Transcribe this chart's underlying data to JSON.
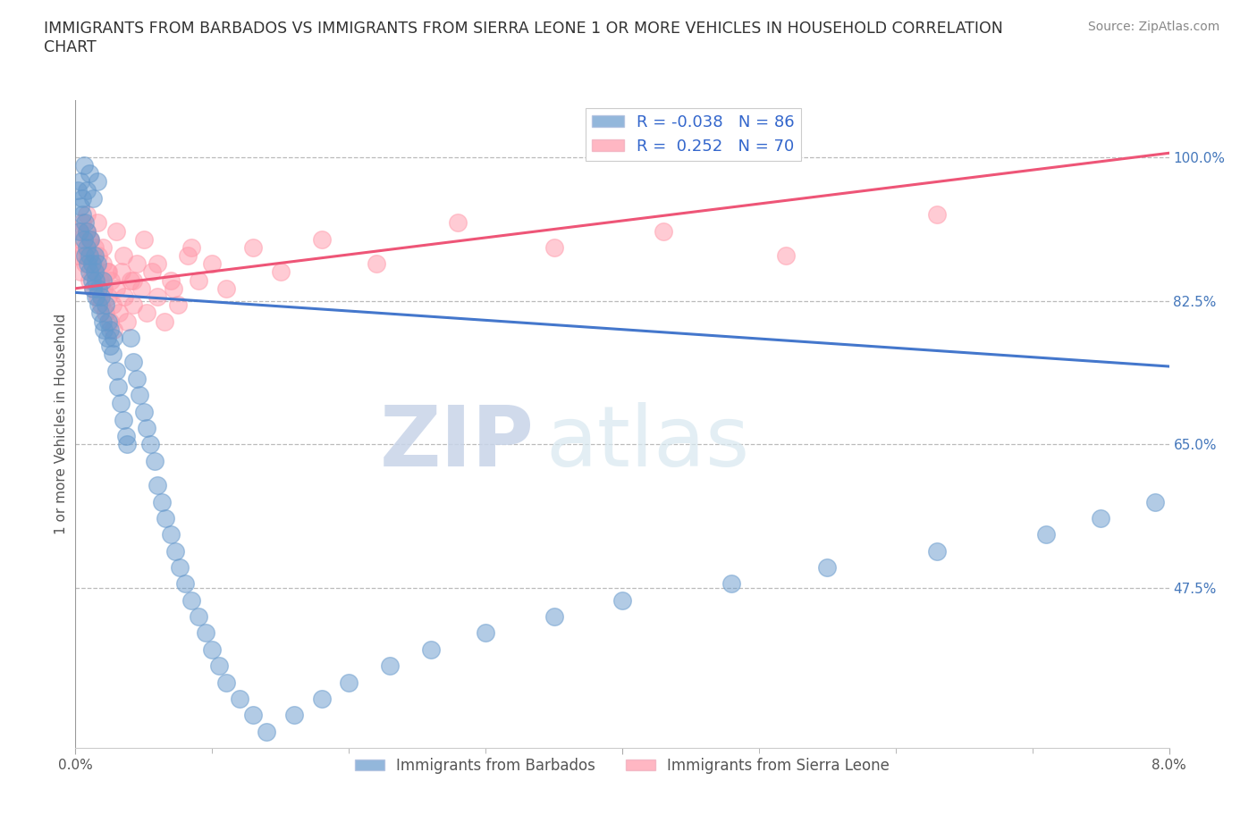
{
  "title": "IMMIGRANTS FROM BARBADOS VS IMMIGRANTS FROM SIERRA LEONE 1 OR MORE VEHICLES IN HOUSEHOLD CORRELATION\nCHART",
  "source": "Source: ZipAtlas.com",
  "ylabel": "1 or more Vehicles in Household",
  "right_yticks": [
    47.5,
    65.0,
    82.5,
    100.0
  ],
  "right_ytick_labels": [
    "47.5%",
    "65.0%",
    "82.5%",
    "100.0%"
  ],
  "xlim": [
    0.0,
    8.0
  ],
  "ylim": [
    28.0,
    107.0
  ],
  "barbados_color": "#6699CC",
  "sierra_leone_color": "#FF99AA",
  "barbados_R": -0.038,
  "barbados_N": 86,
  "sierra_leone_R": 0.252,
  "sierra_leone_N": 70,
  "barbados_line_x0": 0.0,
  "barbados_line_y0": 83.5,
  "barbados_line_x1": 8.0,
  "barbados_line_y1": 74.5,
  "sierra_line_x0": 0.0,
  "sierra_line_y0": 84.0,
  "sierra_line_x1": 8.0,
  "sierra_line_y1": 100.5,
  "legend_label_barbados": "Immigrants from Barbados",
  "legend_label_sierra_leone": "Immigrants from Sierra Leone",
  "watermark_zip": "ZIP",
  "watermark_atlas": "atlas",
  "barbados_scatter_x": [
    0.02,
    0.03,
    0.04,
    0.05,
    0.05,
    0.06,
    0.07,
    0.07,
    0.08,
    0.08,
    0.09,
    0.1,
    0.1,
    0.11,
    0.12,
    0.12,
    0.13,
    0.14,
    0.14,
    0.15,
    0.15,
    0.16,
    0.17,
    0.17,
    0.18,
    0.19,
    0.2,
    0.2,
    0.21,
    0.22,
    0.23,
    0.24,
    0.25,
    0.25,
    0.27,
    0.28,
    0.3,
    0.31,
    0.33,
    0.35,
    0.37,
    0.38,
    0.4,
    0.42,
    0.45,
    0.47,
    0.5,
    0.52,
    0.55,
    0.58,
    0.6,
    0.63,
    0.66,
    0.7,
    0.73,
    0.76,
    0.8,
    0.85,
    0.9,
    0.95,
    1.0,
    1.05,
    1.1,
    1.2,
    1.3,
    1.4,
    1.6,
    1.8,
    2.0,
    2.3,
    2.6,
    3.0,
    3.5,
    4.0,
    4.8,
    5.5,
    6.3,
    7.1,
    7.5,
    7.9,
    0.04,
    0.06,
    0.08,
    0.1,
    0.13,
    0.16
  ],
  "barbados_scatter_y": [
    96,
    91,
    94,
    93,
    95,
    90,
    88,
    92,
    89,
    91,
    87,
    86,
    88,
    90,
    85,
    87,
    84,
    86,
    88,
    83,
    85,
    87,
    82,
    84,
    81,
    83,
    80,
    85,
    79,
    82,
    78,
    80,
    77,
    79,
    76,
    78,
    74,
    72,
    70,
    68,
    66,
    65,
    78,
    75,
    73,
    71,
    69,
    67,
    65,
    63,
    60,
    58,
    56,
    54,
    52,
    50,
    48,
    46,
    44,
    42,
    40,
    38,
    36,
    34,
    32,
    30,
    32,
    34,
    36,
    38,
    40,
    42,
    44,
    46,
    48,
    50,
    52,
    54,
    56,
    58,
    97,
    99,
    96,
    98,
    95,
    97
  ],
  "sierra_leone_scatter_x": [
    0.02,
    0.03,
    0.04,
    0.05,
    0.06,
    0.07,
    0.08,
    0.09,
    0.1,
    0.11,
    0.12,
    0.13,
    0.14,
    0.15,
    0.16,
    0.17,
    0.18,
    0.19,
    0.2,
    0.21,
    0.22,
    0.23,
    0.24,
    0.25,
    0.26,
    0.27,
    0.28,
    0.3,
    0.32,
    0.34,
    0.36,
    0.38,
    0.4,
    0.42,
    0.45,
    0.48,
    0.52,
    0.56,
    0.6,
    0.65,
    0.7,
    0.75,
    0.82,
    0.9,
    1.0,
    1.1,
    1.3,
    1.5,
    1.8,
    2.2,
    2.8,
    3.5,
    4.3,
    5.2,
    6.3,
    0.04,
    0.06,
    0.08,
    0.1,
    0.13,
    0.16,
    0.2,
    0.24,
    0.3,
    0.35,
    0.42,
    0.5,
    0.6,
    0.72,
    0.85
  ],
  "sierra_leone_scatter_y": [
    88,
    90,
    86,
    92,
    89,
    87,
    91,
    88,
    85,
    90,
    87,
    84,
    89,
    86,
    83,
    88,
    85,
    82,
    87,
    84,
    81,
    86,
    83,
    80,
    85,
    82,
    79,
    84,
    81,
    86,
    83,
    80,
    85,
    82,
    87,
    84,
    81,
    86,
    83,
    80,
    85,
    82,
    88,
    85,
    87,
    84,
    89,
    86,
    90,
    87,
    92,
    89,
    91,
    88,
    93,
    91,
    88,
    93,
    90,
    87,
    92,
    89,
    86,
    91,
    88,
    85,
    90,
    87,
    84,
    89
  ]
}
